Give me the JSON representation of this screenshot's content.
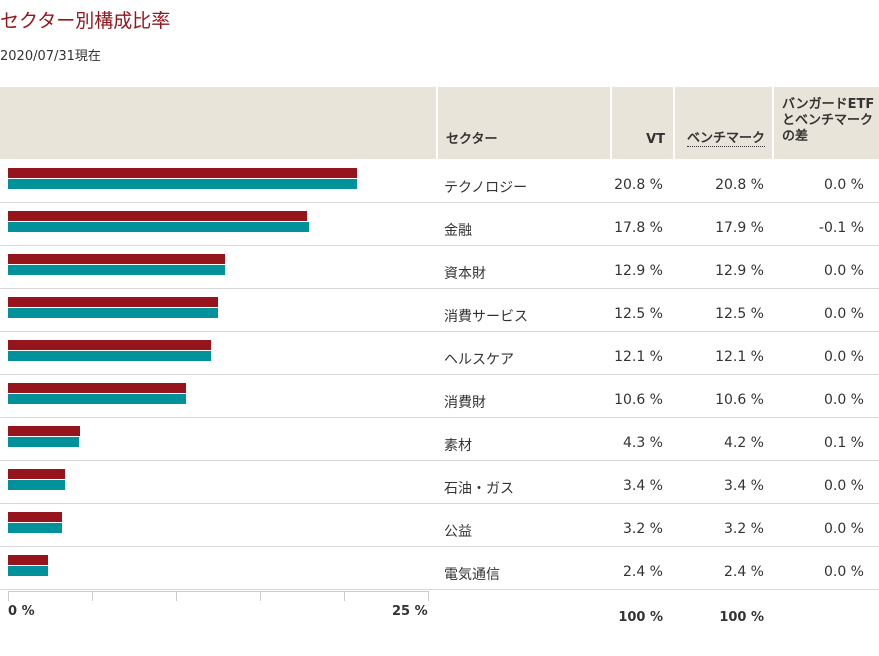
{
  "page": {
    "title": "セクター別構成比率",
    "as_of": "2020/07/31現在"
  },
  "table": {
    "headers": {
      "sector": "セクター",
      "vt": "VT",
      "benchmark": "ベンチマーク",
      "difference": "バンガードETFとベンチマークの差"
    },
    "totals": {
      "vt": "100 %",
      "benchmark": "100 %"
    },
    "rows": [
      {
        "sector": "テクノロジー",
        "vt": "20.8 %",
        "benchmark": "20.8 %",
        "difference": "0.0 %"
      },
      {
        "sector": "金融",
        "vt": "17.8 %",
        "benchmark": "17.9 %",
        "difference": "-0.1 %"
      },
      {
        "sector": "資本財",
        "vt": "12.9 %",
        "benchmark": "12.9 %",
        "difference": "0.0 %"
      },
      {
        "sector": "消費サービス",
        "vt": "12.5 %",
        "benchmark": "12.5 %",
        "difference": "0.0 %"
      },
      {
        "sector": "ヘルスケア",
        "vt": "12.1 %",
        "benchmark": "12.1 %",
        "difference": "0.0 %"
      },
      {
        "sector": "消費財",
        "vt": "10.6 %",
        "benchmark": "10.6 %",
        "difference": "0.0 %"
      },
      {
        "sector": "素材",
        "vt": "4.3 %",
        "benchmark": "4.2 %",
        "difference": "0.1 %"
      },
      {
        "sector": "石油・ガス",
        "vt": "3.4 %",
        "benchmark": "3.4 %",
        "difference": "0.0 %"
      },
      {
        "sector": "公益",
        "vt": "3.2 %",
        "benchmark": "3.2 %",
        "difference": "0.0 %"
      },
      {
        "sector": "電気通信",
        "vt": "2.4 %",
        "benchmark": "2.4 %",
        "difference": "0.0 %"
      }
    ]
  },
  "chart_data": {
    "type": "bar",
    "orientation": "horizontal",
    "categories": [
      "テクノロジー",
      "金融",
      "資本財",
      "消費サービス",
      "ヘルスケア",
      "消費財",
      "素材",
      "石油・ガス",
      "公益",
      "電気通信"
    ],
    "series": [
      {
        "values": [
          20.8,
          17.8,
          12.9,
          12.5,
          12.1,
          10.6,
          4.3,
          3.4,
          3.2,
          2.4
        ],
        "color": "#96151d"
      },
      {
        "values": [
          20.8,
          17.9,
          12.9,
          12.5,
          12.1,
          10.6,
          4.2,
          3.4,
          3.2,
          2.4
        ],
        "color": "#00919a"
      }
    ],
    "xlim": [
      0,
      25
    ],
    "x_tick_labels": [
      "0 %",
      "25 %"
    ],
    "grid": false,
    "legend": "none"
  }
}
